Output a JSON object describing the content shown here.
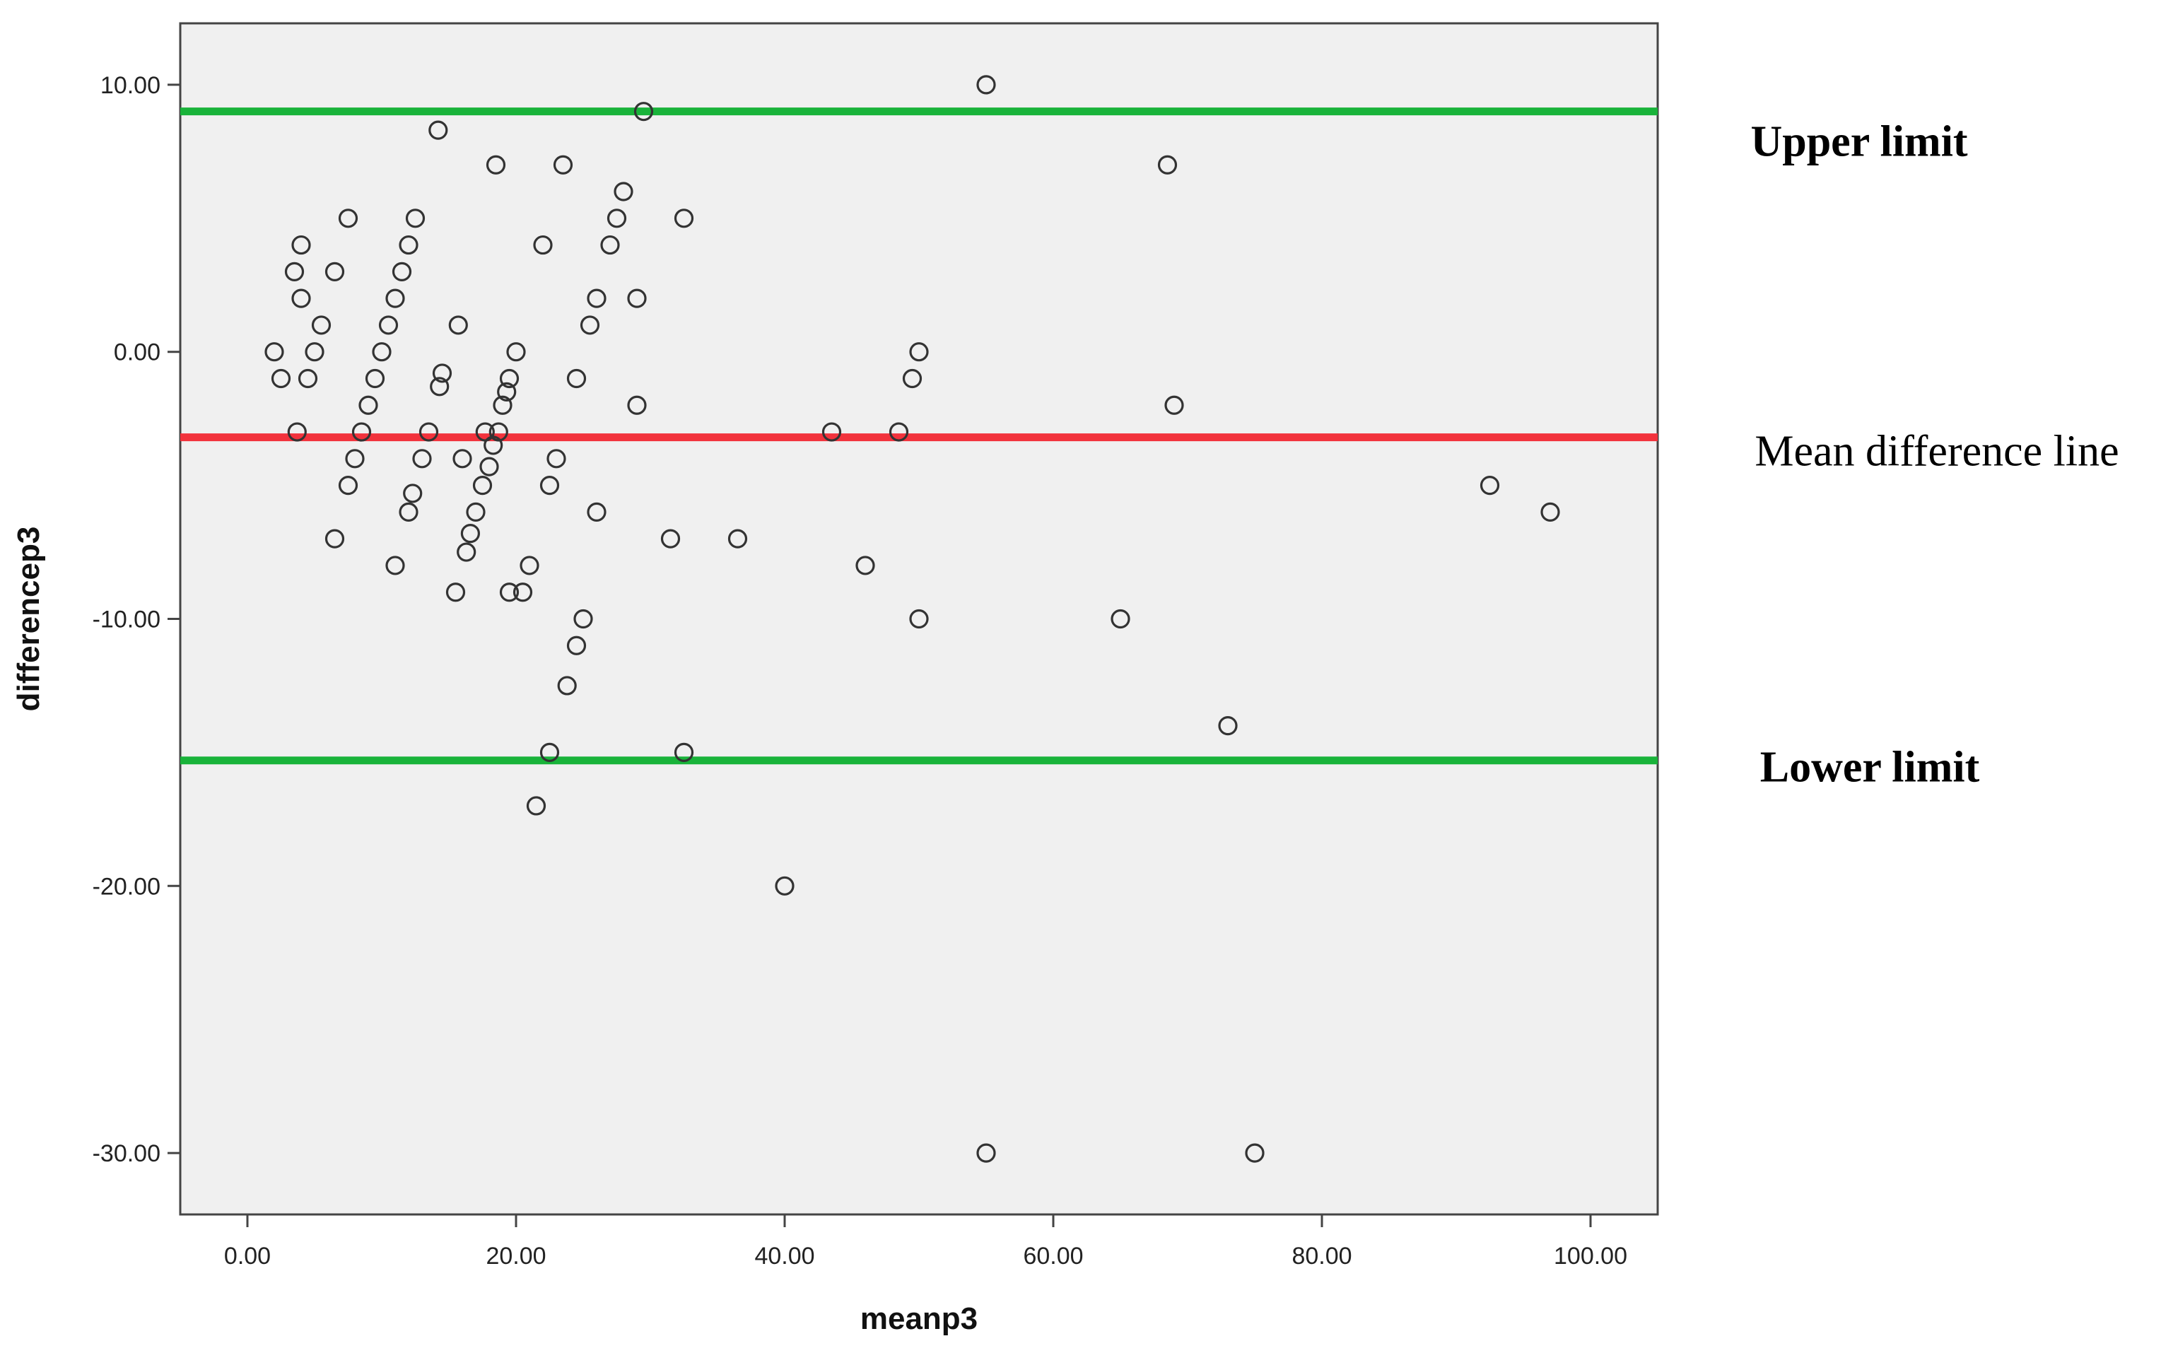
{
  "chart_data": {
    "type": "scatter",
    "title": "",
    "xlabel": "meanp3",
    "ylabel": "differencep3",
    "xlim": [
      -5,
      105
    ],
    "ylim": [
      -32.3,
      12.3
    ],
    "x_ticks": [
      0,
      20,
      40,
      60,
      80,
      100
    ],
    "x_tick_labels": [
      "0.00",
      "20.00",
      "40.00",
      "60.00",
      "80.00",
      "100.00"
    ],
    "y_ticks": [
      10,
      0,
      -10,
      -20,
      -30
    ],
    "y_tick_labels": [
      "10.00",
      "0.00",
      "-10.00",
      "-20.00",
      "-30.00"
    ],
    "grid": false,
    "background": "#f0f0f0",
    "marker_color": "#333333",
    "reference_lines": [
      {
        "label": "Upper limit",
        "y": 9.0,
        "color": "#19b33a",
        "bold": true
      },
      {
        "label": "Mean difference line",
        "y": -3.2,
        "color": "#f2323c",
        "bold": false
      },
      {
        "label": "Lower limit",
        "y": -15.3,
        "color": "#19b33a",
        "bold": true
      }
    ],
    "points": [
      [
        2,
        0
      ],
      [
        2.5,
        -1
      ],
      [
        3.5,
        3
      ],
      [
        3.7,
        -3
      ],
      [
        4,
        4
      ],
      [
        4,
        2
      ],
      [
        4.5,
        -1
      ],
      [
        5,
        0
      ],
      [
        5.5,
        1
      ],
      [
        6.5,
        3
      ],
      [
        6.5,
        -7
      ],
      [
        7.5,
        5
      ],
      [
        7.5,
        -5
      ],
      [
        8,
        -4
      ],
      [
        8.5,
        -3
      ],
      [
        9,
        -2
      ],
      [
        9.5,
        -1
      ],
      [
        10,
        0
      ],
      [
        10.5,
        1
      ],
      [
        11,
        2
      ],
      [
        11,
        -8
      ],
      [
        11.5,
        3
      ],
      [
        12,
        4
      ],
      [
        12,
        -6
      ],
      [
        12.3,
        -5.3
      ],
      [
        12.5,
        5
      ],
      [
        13,
        -4
      ],
      [
        13.5,
        -3
      ],
      [
        14.2,
        8.3
      ],
      [
        14.3,
        -1.3
      ],
      [
        14.5,
        -0.8
      ],
      [
        15.5,
        -9
      ],
      [
        15.7,
        1
      ],
      [
        16,
        -4
      ],
      [
        16.3,
        -7.5
      ],
      [
        16.6,
        -6.8
      ],
      [
        17,
        -6
      ],
      [
        17.5,
        -5
      ],
      [
        17.7,
        -3
      ],
      [
        18,
        -4.3
      ],
      [
        18.3,
        -3.5
      ],
      [
        18.5,
        7
      ],
      [
        18.7,
        -3
      ],
      [
        19,
        -2
      ],
      [
        19.3,
        -1.5
      ],
      [
        19.5,
        -1
      ],
      [
        19.5,
        -9
      ],
      [
        20,
        0
      ],
      [
        20.5,
        -9
      ],
      [
        21,
        -8
      ],
      [
        21.5,
        -17
      ],
      [
        22,
        4
      ],
      [
        22.5,
        -5
      ],
      [
        22.5,
        -15
      ],
      [
        23,
        -4
      ],
      [
        23.5,
        7
      ],
      [
        23.8,
        -12.5
      ],
      [
        24.5,
        -11
      ],
      [
        24.5,
        -1
      ],
      [
        25,
        -10
      ],
      [
        25.5,
        1
      ],
      [
        26,
        2
      ],
      [
        26,
        -6
      ],
      [
        27,
        4
      ],
      [
        27.5,
        5
      ],
      [
        28,
        6
      ],
      [
        29,
        -2
      ],
      [
        29,
        2
      ],
      [
        29.5,
        9
      ],
      [
        31.5,
        -7
      ],
      [
        32.5,
        5
      ],
      [
        32.5,
        -15
      ],
      [
        36.5,
        -7
      ],
      [
        40,
        -20
      ],
      [
        43.5,
        -3
      ],
      [
        46,
        -8
      ],
      [
        48.5,
        -3
      ],
      [
        49.5,
        -1
      ],
      [
        50,
        0
      ],
      [
        50,
        -10
      ],
      [
        55,
        10
      ],
      [
        55,
        -30
      ],
      [
        65,
        -10
      ],
      [
        68.5,
        7
      ],
      [
        69,
        -2
      ],
      [
        73,
        -14
      ],
      [
        75,
        -30
      ],
      [
        92.5,
        -5
      ],
      [
        97,
        -6
      ]
    ]
  }
}
